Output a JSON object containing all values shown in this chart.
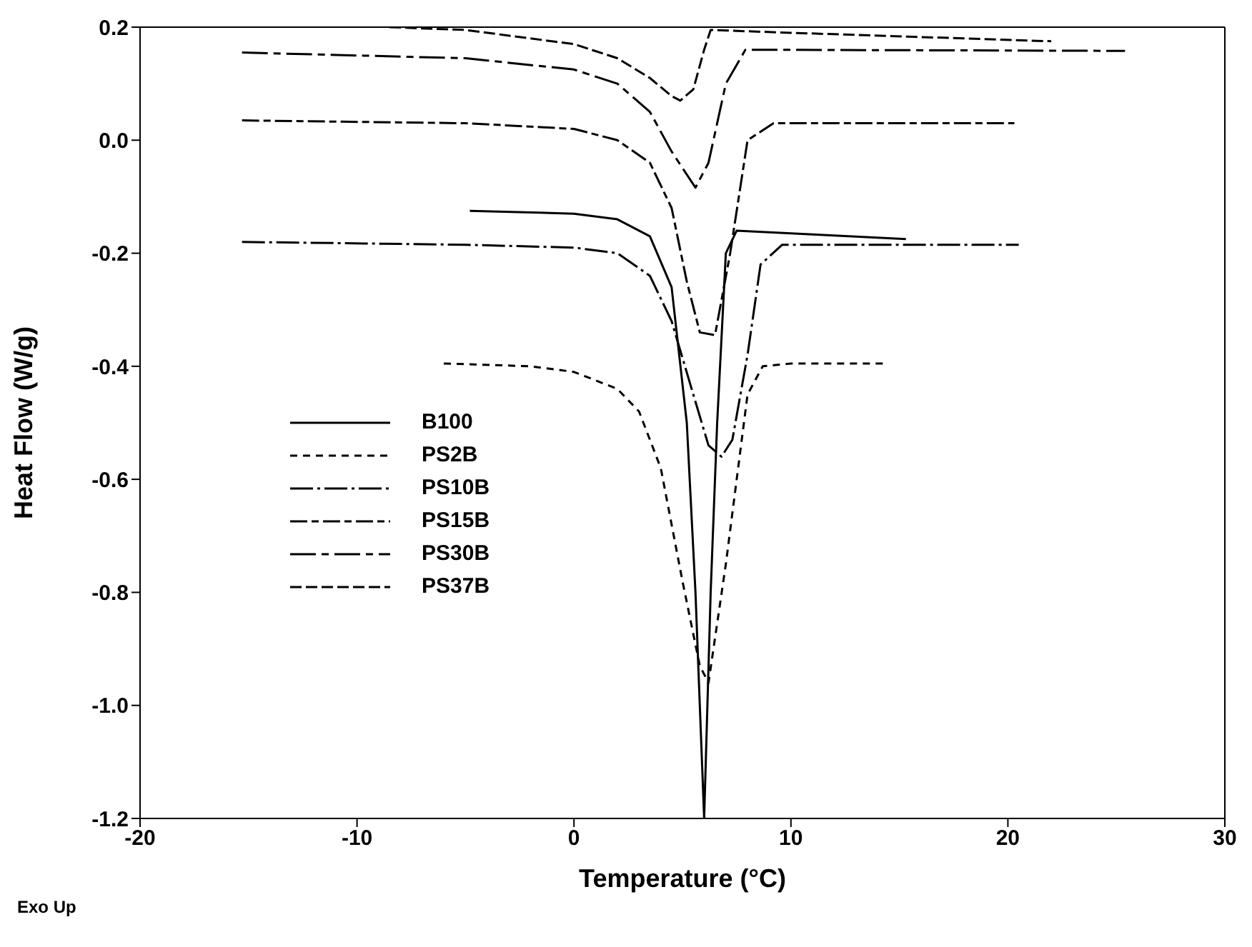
{
  "chart_data": {
    "type": "line",
    "xlabel": "Temperature (°C)",
    "ylabel": "Heat Flow (W/g)",
    "xlim": [
      -20,
      30
    ],
    "xticks": [
      -20,
      -10,
      0,
      10,
      20,
      30
    ],
    "ylim": [
      -1.2,
      0.2
    ],
    "yticks": [
      -1.2,
      {
        "value": -1.0,
        "label": "-1.0"
      },
      -0.8,
      -0.6,
      -0.4,
      -0.2,
      {
        "value": 0,
        "label": "0.0"
      },
      0.2
    ],
    "grid": false,
    "legend": "left",
    "marker": "none",
    "annotations": [
      "Exo Up"
    ],
    "series": [
      {
        "name": "B100",
        "color": "#000000",
        "line_style": "solid",
        "x": [
          -4.8,
          0,
          2,
          3.5,
          4.5,
          5.2,
          5.6,
          6.0,
          6.3,
          6.6,
          7.0,
          7.5,
          10,
          15.3
        ],
        "values": [
          -0.125,
          -0.13,
          -0.14,
          -0.17,
          -0.26,
          -0.5,
          -0.8,
          -1.2,
          -0.8,
          -0.5,
          -0.2,
          -0.16,
          -0.165,
          -0.175
        ]
      },
      {
        "name": "PS2B",
        "color": "#000000",
        "line_style": "dashed",
        "x": [
          -6,
          -2,
          0,
          2,
          3,
          4,
          5,
          5.8,
          6.2,
          7,
          8,
          8.7,
          10,
          14.4
        ],
        "values": [
          -0.395,
          -0.4,
          -0.41,
          -0.44,
          -0.48,
          -0.58,
          -0.78,
          -0.93,
          -0.96,
          -0.75,
          -0.45,
          -0.4,
          -0.395,
          -0.395
        ]
      },
      {
        "name": "PS10B",
        "color": "#000000",
        "line_style": "dashed",
        "x": [
          -15.3,
          -5,
          0,
          2,
          3.5,
          4.5,
          5.5,
          6.2,
          6.8,
          7.3,
          8,
          8.6,
          9.6,
          15,
          20.5
        ],
        "values": [
          -0.18,
          -0.185,
          -0.19,
          -0.2,
          -0.24,
          -0.32,
          -0.45,
          -0.54,
          -0.56,
          -0.53,
          -0.38,
          -0.22,
          -0.185,
          -0.185,
          -0.185
        ]
      },
      {
        "name": "PS15B",
        "color": "#000000",
        "line_style": "dashed",
        "x": [
          -15.3,
          -5,
          0,
          2,
          3.5,
          4.5,
          5.2,
          5.8,
          6.5,
          7.2,
          8,
          9.2,
          20.3
        ],
        "values": [
          0.035,
          0.03,
          0.02,
          0,
          -0.04,
          -0.12,
          -0.25,
          -0.34,
          -0.345,
          -0.2,
          0,
          0.03,
          0.03
        ]
      },
      {
        "name": "PS30B",
        "color": "#000000",
        "line_style": "dashed",
        "x": [
          -15.3,
          -5,
          0,
          2,
          3.5,
          4.5,
          5.6,
          6.2,
          7,
          7.9,
          25.4
        ],
        "values": [
          0.155,
          0.145,
          0.125,
          0.1,
          0.05,
          -0.02,
          -0.084,
          -0.04,
          0.1,
          0.16,
          0.158
        ]
      },
      {
        "name": "PS37B",
        "color": "#000000",
        "line_style": "dashed",
        "x": [
          -8.5,
          -5,
          0,
          2,
          3.5,
          4.5,
          4.9,
          5.5,
          6,
          6.3,
          10,
          22
        ],
        "values": [
          0.2,
          0.195,
          0.17,
          0.145,
          0.11,
          0.078,
          0.07,
          0.09,
          0.16,
          0.195,
          0.19,
          0.175
        ]
      }
    ]
  }
}
